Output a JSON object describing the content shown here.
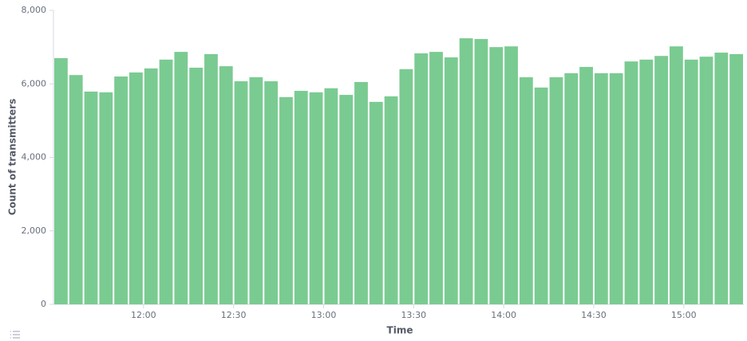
{
  "chart_data": {
    "type": "bar",
    "x_label": "Time",
    "y_label": "Count of transmitters",
    "color": "#7acb91",
    "categories": [
      null,
      null,
      null,
      null,
      null,
      null,
      "12:00",
      null,
      null,
      null,
      null,
      null,
      "12:30",
      null,
      null,
      null,
      null,
      null,
      "13:00",
      null,
      null,
      null,
      null,
      null,
      "13:30",
      null,
      null,
      null,
      null,
      null,
      "14:00",
      null,
      null,
      null,
      null,
      null,
      "14:30",
      null,
      null,
      null,
      null,
      null,
      "15:00",
      null,
      null,
      null
    ],
    "values": [
      6700,
      6240,
      5790,
      5770,
      6200,
      6310,
      6420,
      6660,
      6870,
      6440,
      6810,
      6480,
      6070,
      6180,
      6070,
      5640,
      5810,
      5770,
      5880,
      5700,
      6050,
      5510,
      5660,
      6400,
      6830,
      6870,
      6720,
      7240,
      7220,
      7000,
      7020,
      6180,
      5900,
      6180,
      6290,
      6460,
      6290,
      6290,
      6610,
      6660,
      6760,
      7020,
      6660,
      6740,
      6850,
      6810
    ],
    "ylim": [
      0,
      8000
    ],
    "yticks": [
      0,
      {
        "value": 2000,
        "label": "2,000"
      },
      {
        "value": 4000,
        "label": "4,000"
      },
      {
        "value": 6000,
        "label": "6,000"
      },
      {
        "value": 8000,
        "label": "8,000"
      }
    ],
    "grid": false
  }
}
